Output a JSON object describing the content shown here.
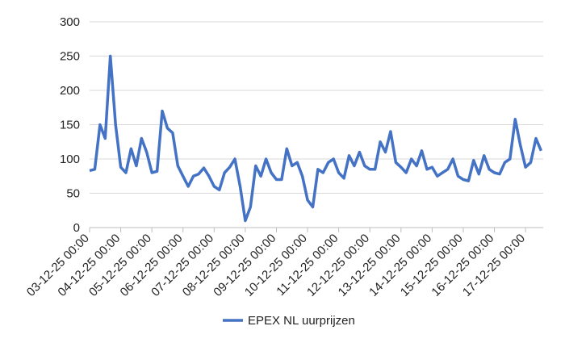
{
  "chart_data": {
    "type": "line",
    "categories": [
      "03-12-25 00:00",
      null,
      null,
      null,
      null,
      null,
      "04-12-25 00:00",
      null,
      null,
      null,
      null,
      null,
      "05-12-25 00:00",
      null,
      null,
      null,
      null,
      null,
      "06-12-25 00:00",
      null,
      null,
      null,
      null,
      null,
      "07-12-25 00:00",
      null,
      null,
      null,
      null,
      null,
      "08-12-25 00:00",
      null,
      null,
      null,
      null,
      null,
      "09-12-25 00:00",
      null,
      null,
      null,
      null,
      null,
      "10-12-25 00:00",
      null,
      null,
      null,
      null,
      null,
      "11-12-25 00:00",
      null,
      null,
      null,
      null,
      null,
      "12-12-25 00:00",
      null,
      null,
      null,
      null,
      null,
      "13-12-25 00:00",
      null,
      null,
      null,
      null,
      null,
      "14-12-25 00:00",
      null,
      null,
      null,
      null,
      null,
      "15-12-25 00:00",
      null,
      null,
      null,
      null,
      null,
      "16-12-25 00:00",
      null,
      null,
      null,
      null,
      null,
      "17-12-25 00:00",
      null,
      null,
      null
    ],
    "series": [
      {
        "name": "EPEX NL uurprijzen",
        "color": "#4472c4",
        "values": [
          83,
          85,
          150,
          130,
          250,
          150,
          88,
          80,
          115,
          90,
          130,
          110,
          80,
          82,
          170,
          145,
          138,
          90,
          75,
          60,
          75,
          78,
          87,
          75,
          60,
          55,
          80,
          88,
          100,
          60,
          10,
          30,
          90,
          75,
          100,
          80,
          70,
          70,
          115,
          90,
          95,
          75,
          40,
          30,
          85,
          80,
          95,
          100,
          80,
          72,
          105,
          90,
          110,
          90,
          85,
          85,
          125,
          110,
          140,
          95,
          88,
          80,
          100,
          90,
          112,
          85,
          88,
          75,
          80,
          85,
          100,
          75,
          70,
          68,
          98,
          78,
          105,
          85,
          80,
          78,
          95,
          100,
          158,
          120,
          88,
          95,
          130,
          112
        ]
      }
    ],
    "ylim": [
      0,
      300
    ],
    "yticks": [
      0,
      50,
      100,
      150,
      200,
      250,
      300
    ],
    "grid": true,
    "legend": "bottom"
  }
}
